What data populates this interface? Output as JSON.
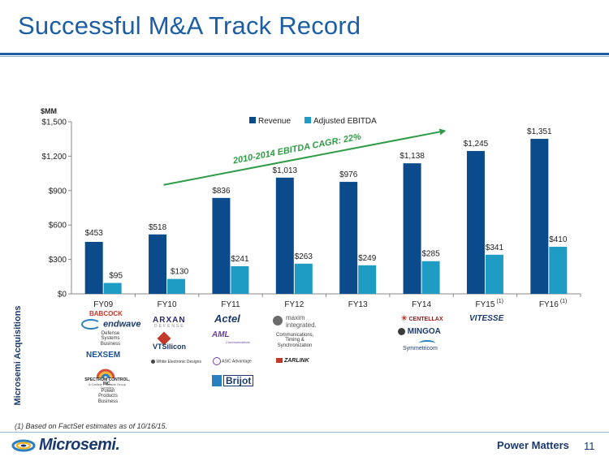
{
  "slide": {
    "title": "Successful M&A Track Record",
    "side_label": "Microsemi Acquisitions",
    "footnote": "(1) Based on  FactSet estimates as of 10/16/15.",
    "brand": "Microsemi.",
    "tagline": "Power Matters",
    "page_number": "11",
    "colors": {
      "title": "#1b5ea3",
      "revenue": "#0b4a8b",
      "ebitda": "#1e9cc4",
      "cagr": "#2e9b46"
    }
  },
  "chart_data": {
    "type": "bar",
    "unit_label": "$MM",
    "categories": [
      "FY09",
      "FY10",
      "FY11",
      "FY12",
      "FY13",
      "FY14",
      "FY15",
      "FY16"
    ],
    "category_superscripts": [
      "",
      "",
      "",
      "",
      "",
      "",
      "(1)",
      "(1)"
    ],
    "series": [
      {
        "name": "Revenue",
        "values": [
          453,
          518,
          836,
          1013,
          976,
          1138,
          1245,
          1351
        ],
        "labels": [
          "$453",
          "$518",
          "$836",
          "$1,013",
          "$976",
          "$1,138",
          "$1,245",
          "$1,351"
        ]
      },
      {
        "name": "Adjusted EBITDA",
        "values": [
          95,
          130,
          241,
          263,
          249,
          285,
          341,
          410
        ],
        "labels": [
          "$95",
          "$130",
          "$241",
          "$263",
          "$249",
          "$285",
          "$341",
          "$410"
        ]
      }
    ],
    "yticks": [
      0,
      300,
      600,
      900,
      1200,
      1500
    ],
    "ytick_labels": [
      "$0",
      "$300",
      "$600",
      "$900",
      "$1,200",
      "$1,500"
    ],
    "ylim": [
      0,
      1500
    ],
    "legend_position": "top-center",
    "annotation": {
      "text": "2010-2014 EBITDA CAGR: 22%",
      "from_category": "FY10",
      "to_category": "FY15",
      "from_value": 950,
      "to_value": 1420
    }
  },
  "acquisitions": {
    "fy09": {
      "babcock": "BABCOCK",
      "endwave": "endwave",
      "defense": "Defense Systems Business",
      "nexsem": "NEXSEM",
      "spectrum": "SPECTRUM CONTROL, INC.",
      "spectrum_sub": "A Carlisle Products Group Company",
      "power_products": "Power Products Business"
    },
    "fy10": {
      "arxan": "ARXAN",
      "arxan_sub": "DEFENSE",
      "vtsilicon": "VTSilicon",
      "white": "White Electronic Designs"
    },
    "fy11": {
      "actel": "Actel",
      "aml": "AML",
      "aml_sub": "Communications",
      "asic": "ASIC Advantage",
      "brijot": "Brijot"
    },
    "fy12": {
      "maxim": "maxim integrated.",
      "comms": "Communications, Timing & Synchronization",
      "zarlink": "ZARLINK"
    },
    "fy14": {
      "centellax": "CENTELLAX",
      "mingoa": "MINGOA",
      "symmetricom": "Symmetricom"
    },
    "fy15": {
      "vitesse": "VITESSE"
    }
  }
}
